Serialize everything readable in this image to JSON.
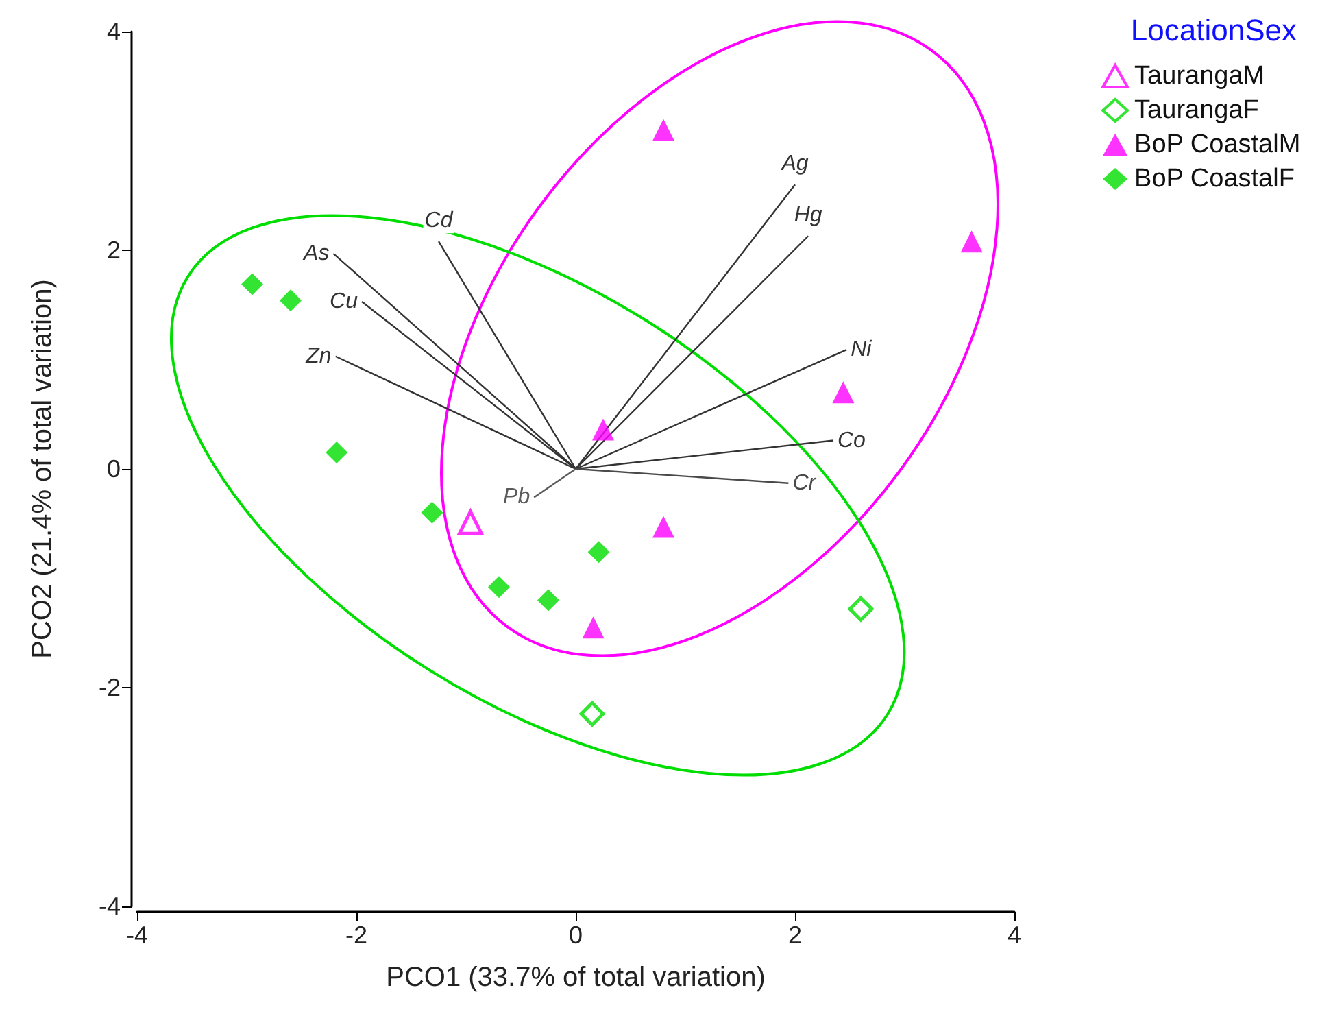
{
  "chart_data": {
    "type": "scatter",
    "xlabel": "PCO1 (33.7% of total variation)",
    "ylabel": "PCO2 (21.4% of total variation)",
    "legend_title": "LocationSex",
    "legend": "top right",
    "grid": false,
    "xlim": [
      -4,
      4
    ],
    "xticks": [
      -4,
      -2,
      0,
      2,
      4
    ],
    "ylim": [
      -4,
      4
    ],
    "yticks": [
      -4,
      -2,
      0,
      2,
      4
    ],
    "series": [
      {
        "name": "TaurangaM",
        "color": "#ff00ff",
        "marker": "triangle-open",
        "x": [
          -0.96
        ],
        "values": [
          -0.49
        ]
      },
      {
        "name": "TaurangaF",
        "color": "#00dd00",
        "marker": "diamond-open",
        "x": [
          0.15,
          2.6
        ],
        "values": [
          -2.24,
          -1.28
        ]
      },
      {
        "name": "BoP CoastalM",
        "color": "#ff00ff",
        "marker": "triangle",
        "x": [
          0.8,
          3.61,
          2.44,
          0.25,
          0.8,
          0.16
        ],
        "values": [
          3.1,
          2.08,
          0.7,
          0.36,
          -0.53,
          -1.45
        ]
      },
      {
        "name": "BoP CoastalF",
        "color": "#00dd00",
        "marker": "diamond",
        "x": [
          -2.95,
          -2.6,
          -2.18,
          -1.31,
          -0.7,
          -0.25,
          0.21
        ],
        "values": [
          1.69,
          1.54,
          0.15,
          -0.4,
          -1.08,
          -1.2,
          -0.76
        ]
      },
      {
        "type": "line",
        "name": "As",
        "color": "#333333",
        "x": [
          0,
          -2.21
        ],
        "values": [
          0,
          1.97
        ]
      },
      {
        "type": "line",
        "name": "Cd",
        "color": "#333333",
        "x": [
          0,
          -1.25
        ],
        "values": [
          0,
          2.08
        ]
      },
      {
        "type": "line",
        "name": "Cu",
        "color": "#333333",
        "x": [
          0,
          -1.95
        ],
        "values": [
          0,
          1.53
        ]
      },
      {
        "type": "line",
        "name": "Zn",
        "color": "#333333",
        "x": [
          0,
          -2.19
        ],
        "values": [
          0,
          1.03
        ]
      },
      {
        "type": "line",
        "name": "Pb",
        "color": "#5a5a5a",
        "x": [
          0,
          -0.38
        ],
        "values": [
          0,
          -0.26
        ]
      },
      {
        "type": "line",
        "name": "Ag",
        "color": "#333333",
        "x": [
          0,
          2.0
        ],
        "values": [
          0,
          2.6
        ]
      },
      {
        "type": "line",
        "name": "Hg",
        "color": "#333333",
        "x": [
          0,
          2.12
        ],
        "values": [
          0,
          2.13
        ]
      },
      {
        "type": "line",
        "name": "Ni",
        "color": "#333333",
        "x": [
          0,
          2.47
        ],
        "values": [
          0,
          1.09
        ]
      },
      {
        "type": "line",
        "name": "Co",
        "color": "#333333",
        "x": [
          0,
          2.35
        ],
        "values": [
          0,
          0.26
        ]
      },
      {
        "type": "line",
        "name": "Cr",
        "color": "#4a4a4a",
        "x": [
          0,
          1.94
        ],
        "values": [
          0,
          -0.13
        ]
      }
    ]
  }
}
